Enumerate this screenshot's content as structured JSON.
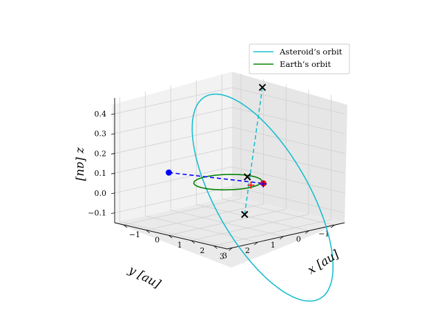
{
  "chart_data": {
    "type": "3d-line",
    "view": {
      "elev_deg": 20,
      "azim_deg": -135
    },
    "xlabel": "$x$ [au]",
    "ylabel": "$y$ [au]",
    "zlabel": "$z$ [au]",
    "xlabel_text": "x [au]",
    "ylabel_text": "y [au]",
    "zlabel_text": "z [au]",
    "xlim": [
      -1.4,
      3.6
    ],
    "ylim": [
      -1.4,
      3.2
    ],
    "zlim": [
      -0.15,
      0.48
    ],
    "xticks": [
      "−1",
      "0",
      "1",
      "2",
      "3"
    ],
    "yticks": [
      "−1",
      "0",
      "1",
      "2",
      "3"
    ],
    "zticks": [
      "−0.1",
      "0.0",
      "0.1",
      "0.2",
      "0.3",
      "0.4"
    ],
    "xtick_values": [
      -1,
      0,
      1,
      2,
      3
    ],
    "ytick_values": [
      -1,
      0,
      1,
      2,
      3
    ],
    "ztick_values": [
      -0.1,
      0.0,
      0.1,
      0.2,
      0.3,
      0.4
    ],
    "grid": true,
    "legend_position": "upper right",
    "series": [
      {
        "name": "Asteroid's orbit",
        "legend_label": "Asteroid’s orbit",
        "kind": "ellipse",
        "color": "#17becf",
        "semi_major_au": 2.2,
        "eccentricity": 0.55,
        "inclination_deg": 15,
        "node_deg": 80,
        "perihelion_arg_deg": 20
      },
      {
        "name": "Earth's orbit",
        "legend_label": "Earth’s orbit",
        "kind": "circle",
        "color": "#008000",
        "radius_au": 1.0
      }
    ],
    "markers": [
      {
        "name": "asteroid-position",
        "shape": "dot",
        "color": "#0000ff",
        "x": 0.1,
        "y": 2.4,
        "z": 0.12
      },
      {
        "name": "earth-position",
        "shape": "dot",
        "color": "#ff0000",
        "x": 0.9,
        "y": -0.6,
        "z": 0.0
      },
      {
        "name": "plus-earth",
        "shape": "plus",
        "color": "#0000ff",
        "x": 0.95,
        "y": -0.55,
        "z": 0.0
      },
      {
        "name": "plus-red",
        "shape": "plus",
        "color": "#ff0000",
        "x": 0.8,
        "y": -0.2,
        "z": 0.0
      },
      {
        "name": "x-top",
        "shape": "x",
        "color": "#000000",
        "x": 0.4,
        "y": -1.0,
        "z": 0.46
      },
      {
        "name": "x-center",
        "shape": "x",
        "color": "#000000",
        "x": 0.3,
        "y": -0.5,
        "z": 0.02
      },
      {
        "name": "x-bottom",
        "shape": "x",
        "color": "#000000",
        "x": 1.2,
        "y": 0.4,
        "z": -0.12
      }
    ],
    "lines": [
      {
        "name": "sight-line",
        "style": "dashed",
        "color": "#0000ff",
        "from": "asteroid-position",
        "to": "earth-position"
      },
      {
        "name": "node-line",
        "style": "dashed",
        "color": "#17becf",
        "from": "x-top",
        "to": "x-bottom"
      }
    ]
  }
}
